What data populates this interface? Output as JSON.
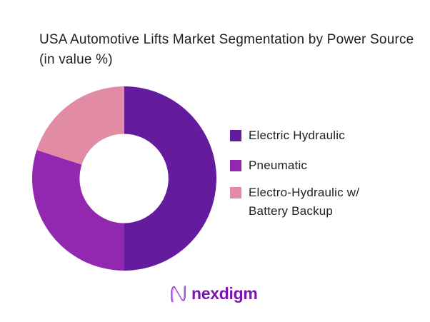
{
  "title": "USA Automotive Lifts Market Segmentation by Power Source (in value %)",
  "chart_data": {
    "type": "pie",
    "subtype": "donut",
    "title": "USA Automotive Lifts Market Segmentation by Power Source (in value %)",
    "unit": "% of value",
    "direction": "clockwise",
    "start_angle_deg": 0,
    "inner_radius_ratio": 0.485,
    "legend_position": "right",
    "categories": [
      "Electric Hydraulic",
      "Pneumatic",
      "Electro-Hydraulic w/ Battery Backup"
    ],
    "values": [
      50,
      30,
      20
    ],
    "segments": [
      {
        "label": "Electric Hydraulic",
        "value": 50,
        "color": "#651B9E"
      },
      {
        "label": "Pneumatic",
        "value": 30,
        "color": "#9228B0"
      },
      {
        "label": "Electro-Hydraulic w/ Battery Backup",
        "value": 20,
        "color": "#E18BA5"
      }
    ]
  },
  "legend": {
    "items": [
      {
        "line1": "Electric Hydraulic",
        "line2": "",
        "color": "#651B9E"
      },
      {
        "line1": "Pneumatic",
        "line2": "",
        "color": "#9228B0"
      },
      {
        "line1": "Electro-Hydraulic w/",
        "line2": "Battery Backup",
        "color": "#E18BA5"
      }
    ]
  },
  "footer": {
    "brand": "nexdigm",
    "logo_icon": "nexdigm-wave-n-icon"
  },
  "colors": {
    "background": "#ffffff",
    "text": "#212121",
    "logo": "#7B16AD"
  }
}
